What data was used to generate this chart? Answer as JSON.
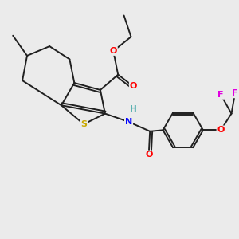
{
  "bg_color": "#ebebeb",
  "atom_colors": {
    "S": "#c8a800",
    "O": "#ff0000",
    "N": "#0000ff",
    "F": "#e000e0",
    "C": "#202020",
    "H_label": "#4aabab"
  },
  "bond_color": "#202020",
  "bond_width": 1.4,
  "title": ""
}
